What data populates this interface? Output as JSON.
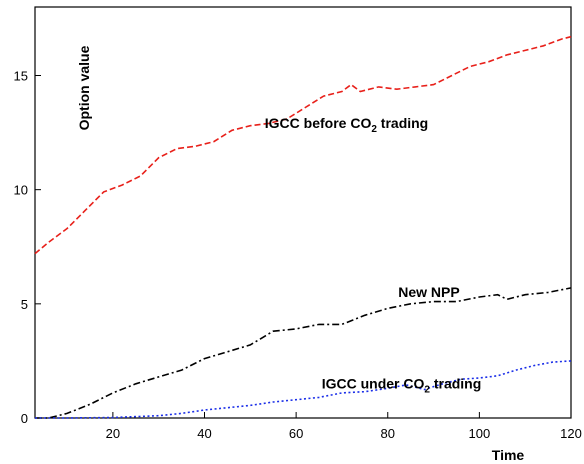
{
  "chart_data": {
    "type": "line",
    "title": "",
    "xlabel": "Time",
    "ylabel": "Option value",
    "xlim": [
      3,
      120
    ],
    "ylim": [
      0,
      18
    ],
    "x_ticks": [
      20,
      40,
      60,
      80,
      100,
      120
    ],
    "y_ticks": [
      0,
      5,
      10,
      15
    ],
    "grid": false,
    "legend": "none",
    "series": [
      {
        "name": "IGCC before CO2 trading",
        "color": "#e8201a",
        "dash": "dashed",
        "x": [
          3,
          6,
          10,
          14,
          18,
          22,
          26,
          30,
          34,
          38,
          42,
          46,
          50,
          54,
          58,
          62,
          66,
          70,
          72,
          74,
          78,
          82,
          86,
          90,
          94,
          98,
          102,
          106,
          110,
          114,
          118,
          120
        ],
        "y": [
          7.2,
          7.7,
          8.3,
          9.1,
          9.9,
          10.2,
          10.6,
          11.4,
          11.8,
          11.9,
          12.1,
          12.6,
          12.8,
          12.9,
          13.1,
          13.6,
          14.1,
          14.3,
          14.6,
          14.3,
          14.5,
          14.4,
          14.5,
          14.6,
          15.0,
          15.4,
          15.6,
          15.9,
          16.1,
          16.3,
          16.6,
          16.7
        ]
      },
      {
        "name": "New NPP",
        "color": "#000000",
        "dash": "dashdot",
        "x": [
          3,
          6,
          10,
          15,
          20,
          25,
          30,
          35,
          40,
          45,
          50,
          55,
          60,
          65,
          70,
          75,
          80,
          85,
          90,
          95,
          100,
          104,
          106,
          110,
          115,
          120
        ],
        "y": [
          0.0,
          0.0,
          0.2,
          0.6,
          1.1,
          1.5,
          1.8,
          2.1,
          2.6,
          2.9,
          3.2,
          3.8,
          3.9,
          4.1,
          4.1,
          4.5,
          4.8,
          5.0,
          5.1,
          5.1,
          5.3,
          5.4,
          5.2,
          5.4,
          5.5,
          5.7
        ]
      },
      {
        "name": "IGCC under CO2 trading",
        "color": "#1a2ee8",
        "dash": "dotted",
        "x": [
          3,
          10,
          20,
          30,
          35,
          40,
          45,
          50,
          55,
          60,
          65,
          70,
          75,
          80,
          84,
          88,
          92,
          96,
          100,
          104,
          108,
          112,
          116,
          120
        ],
        "y": [
          0.0,
          0.0,
          0.02,
          0.1,
          0.2,
          0.35,
          0.45,
          0.55,
          0.7,
          0.8,
          0.9,
          1.1,
          1.15,
          1.3,
          1.45,
          1.25,
          1.5,
          1.7,
          1.75,
          1.85,
          2.1,
          2.3,
          2.45,
          2.5
        ]
      }
    ],
    "annotations": [
      {
        "series": 0,
        "text": "IGCC before CO",
        "sub": "2",
        "suffix": " trading",
        "x": 71,
        "y": 12.7
      },
      {
        "series": 1,
        "text": "New NPP",
        "sub": "",
        "suffix": "",
        "x": 89,
        "y": 5.3
      },
      {
        "series": 2,
        "text": "IGCC under CO",
        "sub": "2",
        "suffix": " trading",
        "x": 83,
        "y": 1.3
      }
    ]
  }
}
